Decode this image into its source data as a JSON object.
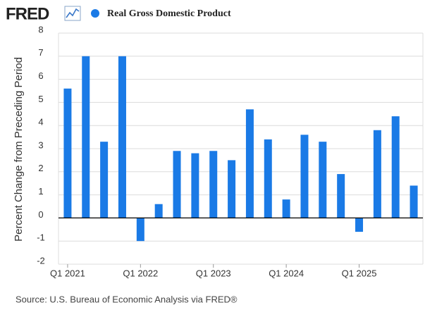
{
  "logo": "FRED",
  "source": "Source: U.S. Bureau of Economic Analysis via FRED®",
  "chart_data": {
    "type": "bar",
    "y_label": "Percent Change from Preceding Period",
    "categories": [
      "Q1 2021",
      null,
      null,
      null,
      "Q1 2022",
      null,
      null,
      null,
      "Q1 2023",
      null,
      null,
      null,
      "Q1 2024",
      null,
      null,
      null,
      "Q1 2025",
      null,
      null,
      null
    ],
    "series": [
      {
        "name": "Real Gross Domestic Product",
        "color": "#1a7ae6",
        "values": [
          5.6,
          7.0,
          3.3,
          7.0,
          -1.0,
          0.6,
          2.9,
          2.8,
          2.9,
          2.5,
          4.7,
          3.4,
          0.8,
          3.6,
          3.3,
          1.9,
          -0.6,
          3.8,
          4.4,
          1.4
        ]
      }
    ],
    "ylim": [
      -2,
      8
    ],
    "yticks": [
      -2,
      -1,
      0,
      1,
      2,
      3,
      4,
      5,
      6,
      7,
      8
    ],
    "grid": true
  }
}
